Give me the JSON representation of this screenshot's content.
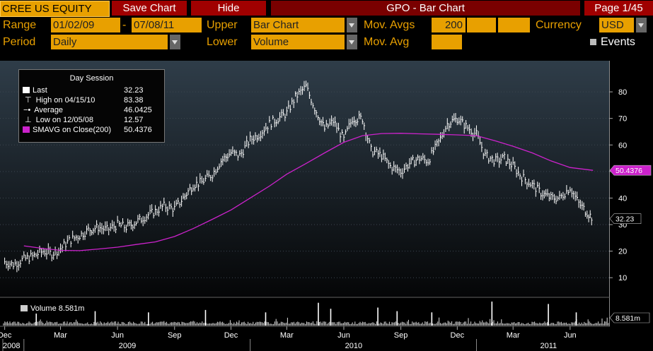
{
  "toolbar": {
    "ticker": "CREE US EQUITY",
    "save_chart": "Save Chart",
    "hide": "Hide",
    "title": "GPO - Bar Chart",
    "page": "Page 1/45"
  },
  "controls": {
    "range_label": "Range",
    "range_from": "01/02/09",
    "range_sep": "-",
    "range_to": "07/08/11",
    "upper_label": "Upper",
    "upper_value": "Bar Chart",
    "mov_avgs_label": "Mov. Avgs",
    "mov_avgs_value": "200",
    "currency_label": "Currency",
    "currency_value": "USD",
    "period_label": "Period",
    "period_value": "Daily",
    "lower_label": "Lower",
    "lower_value": "Volume",
    "mov_avg_label": "Mov. Avg",
    "events_label": "Events"
  },
  "legend": {
    "title": "Day Session",
    "rows": [
      {
        "label": "Last",
        "value": "32.23",
        "color": "#ffffff"
      },
      {
        "label": "High on 04/15/10",
        "value": "83.38",
        "color": "#ffffff"
      },
      {
        "label": "Average",
        "value": "46.0425",
        "color": "#ffffff"
      },
      {
        "label": "Low on 12/05/08",
        "value": "12.57",
        "color": "#ffffff"
      },
      {
        "label": "SMAVG on Close(200)",
        "value": "50.4376",
        "color": "#cc22cc"
      }
    ],
    "volume_label": "Volume",
    "volume_value": "8.581m"
  },
  "colors": {
    "price": "#ffffff",
    "sma": "#cc22cc",
    "accent": "#e8a000",
    "button": "#a00000"
  },
  "chart_data": {
    "type": "bar",
    "x_ticks": [
      "Dec",
      "Mar",
      "Jun",
      "Sep",
      "Dec",
      "Mar",
      "Jun",
      "Sep",
      "Dec",
      "Mar",
      "Jun"
    ],
    "x_years": [
      "2008",
      "2009",
      "2010",
      "2011"
    ],
    "y_ticks": [
      10,
      20,
      30,
      40,
      50,
      60,
      70,
      80
    ],
    "ylim": [
      5,
      88
    ],
    "price_series": {
      "name": "Last",
      "dates": [
        "2008-12-01",
        "2008-12-15",
        "2009-01-01",
        "2009-01-15",
        "2009-02-01",
        "2009-02-15",
        "2009-03-01",
        "2009-03-15",
        "2009-04-01",
        "2009-04-15",
        "2009-05-01",
        "2009-05-15",
        "2009-06-01",
        "2009-06-15",
        "2009-07-01",
        "2009-07-15",
        "2009-08-01",
        "2009-08-15",
        "2009-09-01",
        "2009-09-15",
        "2009-10-01",
        "2009-10-15",
        "2009-11-01",
        "2009-11-15",
        "2009-12-01",
        "2009-12-15",
        "2010-01-01",
        "2010-01-15",
        "2010-02-01",
        "2010-02-15",
        "2010-03-01",
        "2010-03-15",
        "2010-04-01",
        "2010-04-15",
        "2010-05-01",
        "2010-05-15",
        "2010-06-01",
        "2010-06-15",
        "2010-07-01",
        "2010-07-15",
        "2010-08-01",
        "2010-08-15",
        "2010-09-01",
        "2010-09-15",
        "2010-10-01",
        "2010-10-15",
        "2010-11-01",
        "2010-11-15",
        "2010-12-01",
        "2010-12-15",
        "2011-01-01",
        "2011-01-15",
        "2011-02-01",
        "2011-02-15",
        "2011-03-01",
        "2011-03-15",
        "2011-04-01",
        "2011-04-15",
        "2011-05-01",
        "2011-05-15",
        "2011-06-01",
        "2011-06-15",
        "2011-07-01",
        "2011-07-08"
      ],
      "values": [
        16,
        15,
        17,
        18,
        20,
        19,
        21,
        24,
        26,
        28,
        29,
        28,
        30,
        29,
        31,
        33,
        35,
        37,
        36,
        40,
        45,
        46,
        49,
        54,
        57,
        56,
        62,
        64,
        68,
        70,
        72,
        78,
        82,
        74,
        66,
        69,
        62,
        70,
        70,
        58,
        56,
        52,
        50,
        53,
        55,
        54,
        61,
        68,
        70,
        67,
        64,
        56,
        54,
        55,
        52,
        48,
        45,
        42,
        40,
        40,
        44,
        38,
        34,
        32.23
      ]
    },
    "sma_series": {
      "name": "SMAVG on Close(200)",
      "dates": [
        "2009-01-01",
        "2009-02-01",
        "2009-03-01",
        "2009-04-01",
        "2009-05-01",
        "2009-06-01",
        "2009-07-01",
        "2009-08-01",
        "2009-09-01",
        "2009-10-01",
        "2009-11-01",
        "2009-12-01",
        "2010-01-01",
        "2010-02-01",
        "2010-03-01",
        "2010-04-01",
        "2010-05-01",
        "2010-06-01",
        "2010-07-01",
        "2010-08-01",
        "2010-09-01",
        "2010-10-01",
        "2010-11-01",
        "2010-12-01",
        "2011-01-01",
        "2011-02-01",
        "2011-03-01",
        "2011-04-01",
        "2011-05-01",
        "2011-06-01",
        "2011-07-08"
      ],
      "values": [
        22,
        21,
        20.3,
        20.2,
        20.8,
        21.5,
        22.5,
        23.5,
        25.5,
        28.5,
        32,
        35.5,
        40,
        44.5,
        49,
        53,
        57,
        61,
        63.5,
        64.3,
        64.4,
        64.2,
        64,
        63.8,
        63.5,
        61.5,
        59.5,
        57,
        54,
        51.5,
        50.4376
      ]
    },
    "volume": {
      "name": "Volume",
      "last": "8.581m",
      "spike_dates": [
        "2009-01-20",
        "2009-04-25",
        "2009-07-20",
        "2009-10-20",
        "2010-01-25",
        "2010-04-20",
        "2010-05-10",
        "2010-07-25",
        "2010-08-25",
        "2010-10-20",
        "2011-01-25",
        "2011-04-26",
        "2011-06-10"
      ],
      "spike_rel": [
        0.5,
        0.6,
        0.55,
        0.65,
        0.55,
        0.95,
        0.7,
        0.75,
        0.6,
        0.55,
        1.0,
        0.9,
        0.55
      ]
    },
    "labels": {
      "last": "32.23",
      "sma": "50.4376",
      "volume": "8.581m"
    }
  }
}
